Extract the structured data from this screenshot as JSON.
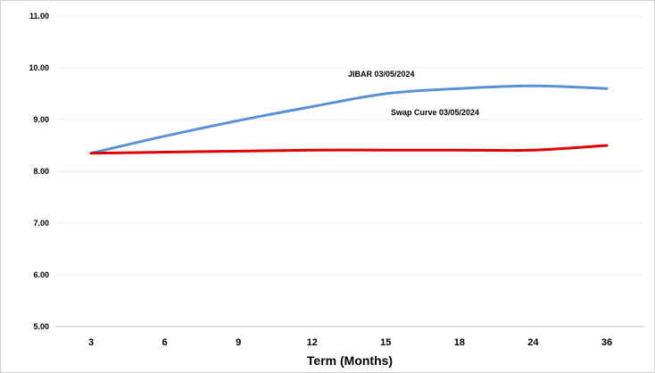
{
  "chart_data": {
    "type": "line",
    "title": "",
    "xlabel": "Term (Months)",
    "ylabel": "",
    "categories": [
      "3",
      "6",
      "9",
      "12",
      "15",
      "18",
      "24",
      "36"
    ],
    "ylim": [
      5.0,
      11.0
    ],
    "yticks": [
      "5.00",
      "6.00",
      "7.00",
      "8.00",
      "9.00",
      "10.00",
      "11.00"
    ],
    "grid": true,
    "legend": "none",
    "series": [
      {
        "name": "JIBAR 03/05/2024",
        "color": "#5b8fd6",
        "values": [
          8.35,
          8.68,
          8.98,
          9.25,
          9.5,
          9.6,
          9.65,
          9.6
        ]
      },
      {
        "name": "Swap Curve 03/05/2024",
        "color": "#e00000",
        "values": [
          8.35,
          8.37,
          8.39,
          8.41,
          8.41,
          8.41,
          8.41,
          8.5
        ]
      }
    ]
  }
}
